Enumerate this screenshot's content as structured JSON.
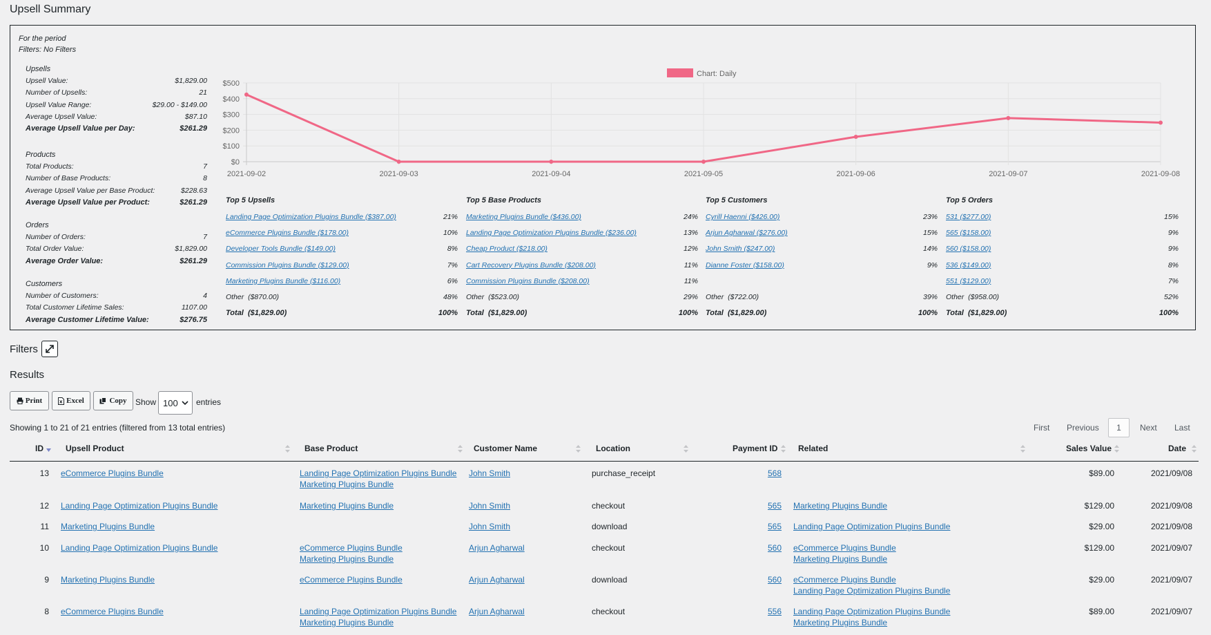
{
  "page": {
    "title": "Upsell Summary"
  },
  "summary": {
    "period_label": "For the period",
    "filters_label": "Filters: No Filters",
    "sections": [
      {
        "heading": "Upsells",
        "rows": [
          {
            "label": "Upsell Value:",
            "value": "$1,829.00",
            "bold": false
          },
          {
            "label": "Number of Upsells:",
            "value": "21",
            "bold": false
          },
          {
            "label": "Upsell Value Range:",
            "value": "$29.00 - $149.00",
            "bold": false
          },
          {
            "label": "Average Upsell Value:",
            "value": "$87.10",
            "bold": false
          },
          {
            "label": "Average Upsell Value per Day:",
            "value": "$261.29",
            "bold": true
          }
        ]
      },
      {
        "heading": "Products",
        "rows": [
          {
            "label": "Total Products:",
            "value": "7",
            "bold": false
          },
          {
            "label": "Number of Base Products:",
            "value": "8",
            "bold": false
          },
          {
            "label": "Average Upsell Value per Base Product:",
            "value": "$228.63",
            "bold": false
          },
          {
            "label": "Average Upsell Value per Product:",
            "value": "$261.29",
            "bold": true
          }
        ]
      },
      {
        "heading": "Orders",
        "rows": [
          {
            "label": "Number of Orders:",
            "value": "7",
            "bold": false
          },
          {
            "label": "Total Order Value:",
            "value": "$1,829.00",
            "bold": false
          },
          {
            "label": "Average Order Value:",
            "value": "$261.29",
            "bold": true
          }
        ]
      },
      {
        "heading": "Customers",
        "rows": [
          {
            "label": "Number of Customers:",
            "value": "4",
            "bold": false
          },
          {
            "label": "Total Customer Lifetime Sales:",
            "value": "1107.00",
            "bold": false
          },
          {
            "label": "Average Customer Lifetime Value:",
            "value": "$276.75",
            "bold": true
          }
        ]
      }
    ]
  },
  "chart_data": {
    "type": "line",
    "legend": "Chart: Daily",
    "legend_position": "top-center",
    "x": [
      "2021-09-02",
      "2021-09-03",
      "2021-09-04",
      "2021-09-05",
      "2021-09-06",
      "2021-09-07",
      "2021-09-08"
    ],
    "series": [
      {
        "name": "Chart: Daily",
        "values": [
          426,
          0,
          0,
          0,
          158,
          277,
          248
        ],
        "color": "#f06786"
      }
    ],
    "y_ticks": [
      "$0",
      "$100",
      "$200",
      "$300",
      "$400",
      "$500"
    ],
    "ylim": [
      0,
      500
    ],
    "grid": true
  },
  "top5": [
    {
      "title": "Top 5 Upsells",
      "items": [
        {
          "label": "Landing Page Optimization Plugins Bundle ($387.00)",
          "pct": "21%"
        },
        {
          "label": "eCommerce Plugins Bundle ($178.00)",
          "pct": "10%"
        },
        {
          "label": "Developer Tools Bundle ($149.00)",
          "pct": "8%"
        },
        {
          "label": "Commission Plugins Bundle ($129.00)",
          "pct": "7%"
        },
        {
          "label": "Marketing Plugins Bundle ($116.00)",
          "pct": "6%"
        }
      ],
      "other": {
        "label": "Other  ($870.00)",
        "pct": "48%"
      },
      "total": {
        "label": "Total  ($1,829.00)",
        "pct": "100%"
      }
    },
    {
      "title": "Top 5 Base Products",
      "items": [
        {
          "label": "Marketing Plugins Bundle ($436.00)",
          "pct": "24%"
        },
        {
          "label": "Landing Page Optimization Plugins Bundle ($236.00)",
          "pct": "13%"
        },
        {
          "label": "Cheap Product ($218.00)",
          "pct": "12%"
        },
        {
          "label": "Cart Recovery Plugins Bundle ($208.00)",
          "pct": "11%"
        },
        {
          "label": "Commission Plugins Bundle ($208.00)",
          "pct": "11%"
        }
      ],
      "other": {
        "label": "Other  ($523.00)",
        "pct": "29%"
      },
      "total": {
        "label": "Total  ($1,829.00)",
        "pct": "100%"
      }
    },
    {
      "title": "Top 5 Customers",
      "items": [
        {
          "label": "Cyrill Haenni ($426.00)",
          "pct": "23%"
        },
        {
          "label": "Arjun Agharwal ($276.00)",
          "pct": "15%"
        },
        {
          "label": "John Smith ($247.00)",
          "pct": "14%"
        },
        {
          "label": "Dianne Foster ($158.00)",
          "pct": "9%"
        },
        {
          "label": "",
          "pct": ""
        }
      ],
      "other": {
        "label": "Other  ($722.00)",
        "pct": "39%"
      },
      "total": {
        "label": "Total  ($1,829.00)",
        "pct": "100%"
      }
    },
    {
      "title": "Top 5 Orders",
      "items": [
        {
          "label": "531 ($277.00)",
          "pct": "15%"
        },
        {
          "label": "565 ($158.00)",
          "pct": "9%"
        },
        {
          "label": "560 ($158.00)",
          "pct": "9%"
        },
        {
          "label": "536 ($149.00)",
          "pct": "8%"
        },
        {
          "label": "551 ($129.00)",
          "pct": "7%"
        }
      ],
      "other": {
        "label": "Other  ($958.00)",
        "pct": "52%"
      },
      "total": {
        "label": "Total  ($1,829.00)",
        "pct": "100%"
      }
    }
  ],
  "filters": {
    "heading": "Filters"
  },
  "results": {
    "heading": "Results",
    "buttons": {
      "print": "Print",
      "excel": "Excel",
      "copy": "Copy"
    },
    "show_label": "Show",
    "entries_value": "100",
    "entries_label": "entries",
    "info": "Showing 1 to 21 of 21 entries (filtered from 13 total entries)",
    "pagination": {
      "first": "First",
      "previous": "Previous",
      "current": "1",
      "next": "Next",
      "last": "Last"
    },
    "columns": [
      "ID",
      "Upsell Product",
      "Base Product",
      "Customer Name",
      "Location",
      "Payment ID",
      "Related",
      "Sales Value",
      "Date"
    ],
    "rows": [
      {
        "id": "13",
        "upsell": "eCommerce Plugins Bundle",
        "base": [
          "Landing Page Optimization Plugins Bundle",
          "Marketing Plugins Bundle"
        ],
        "customer": "John Smith",
        "location": "purchase_receipt",
        "payment": "568",
        "related": [],
        "sales": "$89.00",
        "date": "2021/09/08"
      },
      {
        "id": "12",
        "upsell": "Landing Page Optimization Plugins Bundle",
        "base": [
          "Marketing Plugins Bundle"
        ],
        "customer": "John Smith",
        "location": "checkout",
        "payment": "565",
        "related": [
          "Marketing Plugins Bundle"
        ],
        "sales": "$129.00",
        "date": "2021/09/08"
      },
      {
        "id": "11",
        "upsell": "Marketing Plugins Bundle",
        "base": [],
        "customer": "John Smith",
        "location": "download",
        "payment": "565",
        "related": [
          "Landing Page Optimization Plugins Bundle"
        ],
        "sales": "$29.00",
        "date": "2021/09/08"
      },
      {
        "id": "10",
        "upsell": "Landing Page Optimization Plugins Bundle",
        "base": [
          "eCommerce Plugins Bundle",
          "Marketing Plugins Bundle"
        ],
        "customer": "Arjun Agharwal",
        "location": "checkout",
        "payment": "560",
        "related": [
          "eCommerce Plugins Bundle",
          "Marketing Plugins Bundle"
        ],
        "sales": "$129.00",
        "date": "2021/09/07"
      },
      {
        "id": "9",
        "upsell": "Marketing Plugins Bundle",
        "base": [
          "eCommerce Plugins Bundle"
        ],
        "customer": "Arjun Agharwal",
        "location": "download",
        "payment": "560",
        "related": [
          "eCommerce Plugins Bundle",
          "Landing Page Optimization Plugins Bundle"
        ],
        "sales": "$29.00",
        "date": "2021/09/07"
      },
      {
        "id": "8",
        "upsell": "eCommerce Plugins Bundle",
        "base": [
          "Landing Page Optimization Plugins Bundle",
          "Marketing Plugins Bundle"
        ],
        "customer": "Arjun Agharwal",
        "location": "checkout",
        "payment": "556",
        "related": [
          "Landing Page Optimization Plugins Bundle",
          "Marketing Plugins Bundle"
        ],
        "sales": "$89.00",
        "date": "2021/09/07"
      }
    ]
  }
}
